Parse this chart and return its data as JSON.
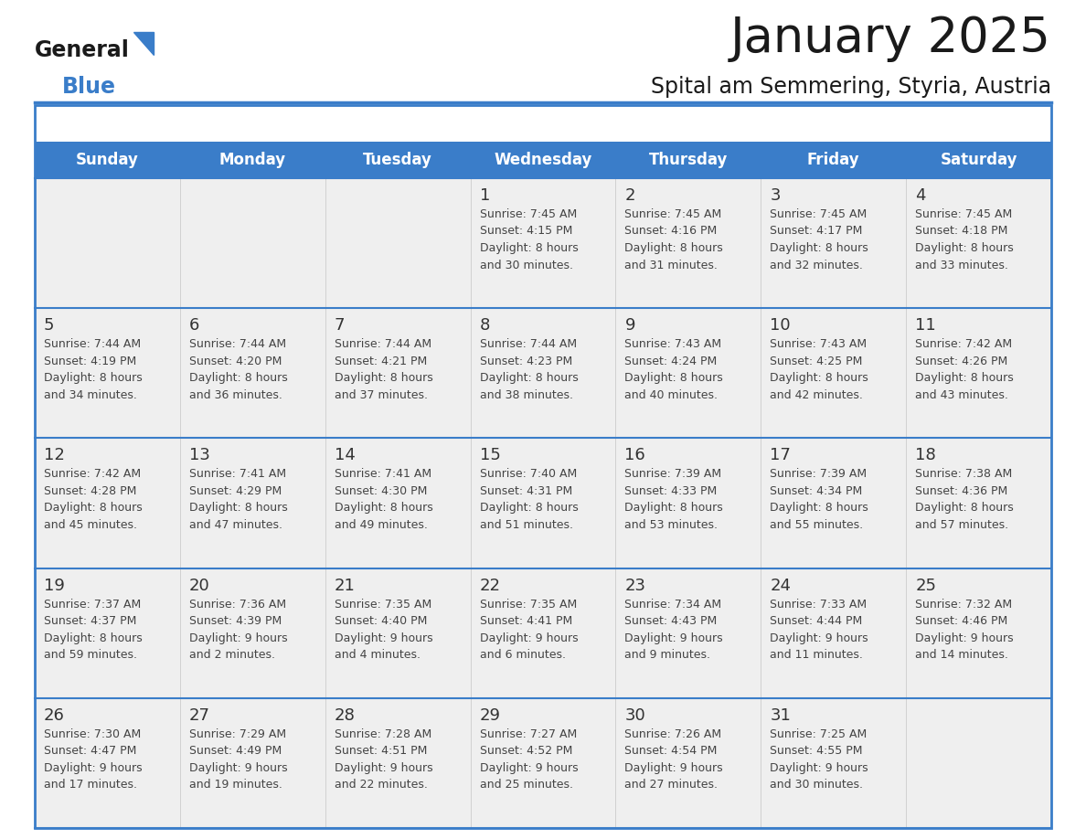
{
  "title": "January 2025",
  "subtitle": "Spital am Semmering, Styria, Austria",
  "header_color": "#3A7DC9",
  "header_text_color": "#FFFFFF",
  "cell_bg_color": "#EFEFEF",
  "text_color": "#333333",
  "days_of_week": [
    "Sunday",
    "Monday",
    "Tuesday",
    "Wednesday",
    "Thursday",
    "Friday",
    "Saturday"
  ],
  "calendar_data": [
    [
      null,
      null,
      null,
      {
        "day": 1,
        "sunrise": "7:45 AM",
        "sunset": "4:15 PM",
        "daylight": "8 hours and 30 minutes."
      },
      {
        "day": 2,
        "sunrise": "7:45 AM",
        "sunset": "4:16 PM",
        "daylight": "8 hours and 31 minutes."
      },
      {
        "day": 3,
        "sunrise": "7:45 AM",
        "sunset": "4:17 PM",
        "daylight": "8 hours and 32 minutes."
      },
      {
        "day": 4,
        "sunrise": "7:45 AM",
        "sunset": "4:18 PM",
        "daylight": "8 hours and 33 minutes."
      }
    ],
    [
      {
        "day": 5,
        "sunrise": "7:44 AM",
        "sunset": "4:19 PM",
        "daylight": "8 hours and 34 minutes."
      },
      {
        "day": 6,
        "sunrise": "7:44 AM",
        "sunset": "4:20 PM",
        "daylight": "8 hours and 36 minutes."
      },
      {
        "day": 7,
        "sunrise": "7:44 AM",
        "sunset": "4:21 PM",
        "daylight": "8 hours and 37 minutes."
      },
      {
        "day": 8,
        "sunrise": "7:44 AM",
        "sunset": "4:23 PM",
        "daylight": "8 hours and 38 minutes."
      },
      {
        "day": 9,
        "sunrise": "7:43 AM",
        "sunset": "4:24 PM",
        "daylight": "8 hours and 40 minutes."
      },
      {
        "day": 10,
        "sunrise": "7:43 AM",
        "sunset": "4:25 PM",
        "daylight": "8 hours and 42 minutes."
      },
      {
        "day": 11,
        "sunrise": "7:42 AM",
        "sunset": "4:26 PM",
        "daylight": "8 hours and 43 minutes."
      }
    ],
    [
      {
        "day": 12,
        "sunrise": "7:42 AM",
        "sunset": "4:28 PM",
        "daylight": "8 hours and 45 minutes."
      },
      {
        "day": 13,
        "sunrise": "7:41 AM",
        "sunset": "4:29 PM",
        "daylight": "8 hours and 47 minutes."
      },
      {
        "day": 14,
        "sunrise": "7:41 AM",
        "sunset": "4:30 PM",
        "daylight": "8 hours and 49 minutes."
      },
      {
        "day": 15,
        "sunrise": "7:40 AM",
        "sunset": "4:31 PM",
        "daylight": "8 hours and 51 minutes."
      },
      {
        "day": 16,
        "sunrise": "7:39 AM",
        "sunset": "4:33 PM",
        "daylight": "8 hours and 53 minutes."
      },
      {
        "day": 17,
        "sunrise": "7:39 AM",
        "sunset": "4:34 PM",
        "daylight": "8 hours and 55 minutes."
      },
      {
        "day": 18,
        "sunrise": "7:38 AM",
        "sunset": "4:36 PM",
        "daylight": "8 hours and 57 minutes."
      }
    ],
    [
      {
        "day": 19,
        "sunrise": "7:37 AM",
        "sunset": "4:37 PM",
        "daylight": "8 hours and 59 minutes."
      },
      {
        "day": 20,
        "sunrise": "7:36 AM",
        "sunset": "4:39 PM",
        "daylight": "9 hours and 2 minutes."
      },
      {
        "day": 21,
        "sunrise": "7:35 AM",
        "sunset": "4:40 PM",
        "daylight": "9 hours and 4 minutes."
      },
      {
        "day": 22,
        "sunrise": "7:35 AM",
        "sunset": "4:41 PM",
        "daylight": "9 hours and 6 minutes."
      },
      {
        "day": 23,
        "sunrise": "7:34 AM",
        "sunset": "4:43 PM",
        "daylight": "9 hours and 9 minutes."
      },
      {
        "day": 24,
        "sunrise": "7:33 AM",
        "sunset": "4:44 PM",
        "daylight": "9 hours and 11 minutes."
      },
      {
        "day": 25,
        "sunrise": "7:32 AM",
        "sunset": "4:46 PM",
        "daylight": "9 hours and 14 minutes."
      }
    ],
    [
      {
        "day": 26,
        "sunrise": "7:30 AM",
        "sunset": "4:47 PM",
        "daylight": "9 hours and 17 minutes."
      },
      {
        "day": 27,
        "sunrise": "7:29 AM",
        "sunset": "4:49 PM",
        "daylight": "9 hours and 19 minutes."
      },
      {
        "day": 28,
        "sunrise": "7:28 AM",
        "sunset": "4:51 PM",
        "daylight": "9 hours and 22 minutes."
      },
      {
        "day": 29,
        "sunrise": "7:27 AM",
        "sunset": "4:52 PM",
        "daylight": "9 hours and 25 minutes."
      },
      {
        "day": 30,
        "sunrise": "7:26 AM",
        "sunset": "4:54 PM",
        "daylight": "9 hours and 27 minutes."
      },
      {
        "day": 31,
        "sunrise": "7:25 AM",
        "sunset": "4:55 PM",
        "daylight": "9 hours and 30 minutes."
      },
      null
    ]
  ],
  "header_divider_color": "#3A7DC9",
  "row_divider_color": "#3A7DC9",
  "col_divider_color": "#CCCCCC",
  "title_fontsize": 38,
  "subtitle_fontsize": 17,
  "day_name_fontsize": 12,
  "day_num_fontsize": 13,
  "cell_text_fontsize": 9
}
